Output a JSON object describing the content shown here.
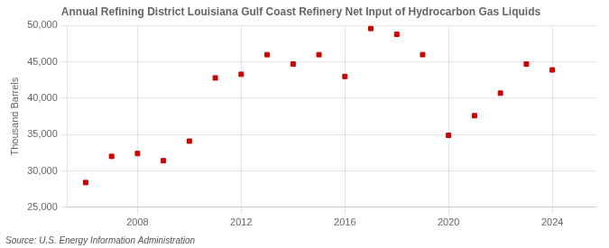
{
  "chart_data": {
    "type": "scatter",
    "title": "Annual Refining District Louisiana Gulf Coast Refinery Net Input of Hydrocarbon Gas Liquids",
    "ylabel": "Thousand Barrels",
    "source": "Source: U.S. Energy Information Administration",
    "x": [
      2006,
      2007,
      2008,
      2009,
      2010,
      2011,
      2012,
      2013,
      2014,
      2015,
      2016,
      2017,
      2018,
      2019,
      2020,
      2021,
      2022,
      2023,
      2024
    ],
    "values": [
      28400,
      32000,
      32400,
      31400,
      34100,
      42800,
      43300,
      46000,
      44700,
      46000,
      43000,
      49600,
      48800,
      46000,
      34900,
      37600,
      40700,
      44700,
      43900
    ],
    "color": "#cc0000",
    "marker": "square",
    "xlim": [
      2005.3,
      2025.7
    ],
    "ylim": [
      25000,
      50000
    ],
    "xticks": [
      2008,
      2012,
      2016,
      2020,
      2024
    ],
    "yticks": [
      {
        "value": 25000,
        "label": "25,000"
      },
      {
        "value": 30000,
        "label": "30,000"
      },
      {
        "value": 35000,
        "label": "35,000"
      },
      {
        "value": 40000,
        "label": "40,000"
      },
      {
        "value": 45000,
        "label": "45,000"
      },
      {
        "value": 50000,
        "label": "50,000"
      }
    ],
    "grid": true
  }
}
